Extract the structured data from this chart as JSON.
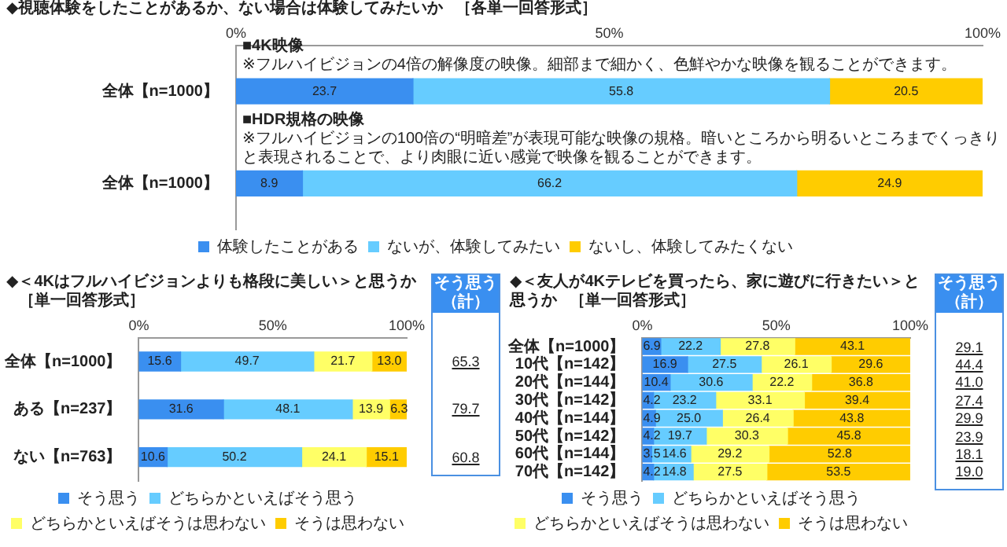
{
  "chart_data": [
    {
      "type": "bar",
      "orientation": "horizontal",
      "stacked": true,
      "title": "◆視聴体験をしたことがあるか、ない場合は体験してみたいか",
      "subtitle": "［各単一回答形式］",
      "categories": [
        "全体【n=1000】",
        "全体【n=1000】"
      ],
      "series": [
        {
          "name": "体験したことがある",
          "color": "#3a8ff0",
          "values": [
            23.7,
            8.9
          ],
          "value_labels": [
            "23.7",
            "8.9"
          ]
        },
        {
          "name": "ないが、体験してみたい",
          "color": "#66ccff",
          "values": [
            55.8,
            66.2
          ],
          "value_labels": [
            "55.8",
            "66.2"
          ]
        },
        {
          "name": "ないし、体験してみたくない",
          "color": "#ffcc00",
          "values": [
            20.5,
            24.9
          ],
          "value_labels": [
            "20.5",
            "24.9"
          ]
        }
      ],
      "xlim": [
        0,
        100
      ],
      "xticks": [
        {
          "value": 0,
          "label": "0%"
        },
        {
          "value": 50,
          "label": "50%"
        },
        {
          "value": 100,
          "label": "100%"
        }
      ],
      "legend": "bottom",
      "annotations": [
        "■4K映像",
        "※フルハイビジョンの4倍の解像度の映像。細部まで細かく、色鮮やかな映像を観ることができます。",
        "■HDR規格の映像",
        "※フルハイビジョンの100倍の“明暗差”が表現可能な映像の規格。暗いところから明るいところまでくっきりと表現されることで、より肉眼に近い感覚で映像を観ることができます。"
      ]
    },
    {
      "type": "bar",
      "orientation": "horizontal",
      "stacked": true,
      "title": "◆＜4Kはフルハイビジョンよりも格段に美しい＞と思うか",
      "subtitle": "［単一回答形式］",
      "categories": [
        "全体【n=1000】",
        "ある【n=237】",
        "ない【n=763】"
      ],
      "series": [
        {
          "name": "そう思う",
          "color": "#3a8ff0",
          "values": [
            15.6,
            31.6,
            10.6
          ],
          "value_labels": [
            "15.6",
            "31.6",
            "10.6"
          ]
        },
        {
          "name": "どちらかといえばそう思う",
          "color": "#66ccff",
          "values": [
            49.7,
            48.1,
            50.2
          ],
          "value_labels": [
            "49.7",
            "48.1",
            "50.2"
          ]
        },
        {
          "name": "どちらかといえばそうは思わない",
          "color": "#ffff66",
          "values": [
            21.7,
            13.9,
            24.1
          ],
          "value_labels": [
            "21.7",
            "13.9",
            "24.1"
          ]
        },
        {
          "name": "そうは思わない",
          "color": "#ffcc00",
          "values": [
            13.0,
            6.3,
            15.1
          ],
          "value_labels": [
            "13.0",
            "6.3",
            "15.1"
          ]
        }
      ],
      "xlim": [
        0,
        100
      ],
      "xticks": [
        {
          "value": 0,
          "label": "0%"
        },
        {
          "value": 50,
          "label": "50%"
        },
        {
          "value": 100,
          "label": "100%"
        }
      ],
      "legend": "bottom",
      "annotations": [
        "そう思う（計）",
        "65.3",
        "79.7",
        "60.8"
      ]
    },
    {
      "type": "bar",
      "orientation": "horizontal",
      "stacked": true,
      "title": "◆＜友人が4Kテレビを買ったら、家に遊びに行きたい＞と思うか",
      "subtitle": "［単一回答形式］",
      "categories": [
        "全体【n=1000】",
        "10代【n=142】",
        "20代【n=144】",
        "30代【n=142】",
        "40代【n=144】",
        "50代【n=142】",
        "60代【n=144】",
        "70代【n=142】"
      ],
      "series": [
        {
          "name": "そう思う",
          "color": "#3a8ff0",
          "values": [
            6.9,
            16.9,
            10.4,
            4.2,
            4.9,
            4.2,
            3.5,
            4.2
          ],
          "value_labels": [
            "6.9",
            "16.9",
            "10.4",
            "4.2",
            "4.9",
            "4.2",
            "3.5",
            "4.2"
          ]
        },
        {
          "name": "どちらかといえばそう思う",
          "color": "#66ccff",
          "values": [
            22.2,
            27.5,
            30.6,
            23.2,
            25.0,
            19.7,
            14.6,
            14.8
          ],
          "value_labels": [
            "22.2",
            "27.5",
            "30.6",
            "23.2",
            "25.0",
            "19.7",
            "14.6",
            "14.8"
          ]
        },
        {
          "name": "どちらかといえばそうは思わない",
          "color": "#ffff66",
          "values": [
            27.8,
            26.1,
            22.2,
            33.1,
            26.4,
            30.3,
            29.2,
            27.5
          ],
          "value_labels": [
            "27.8",
            "26.1",
            "22.2",
            "33.1",
            "26.4",
            "30.3",
            "29.2",
            "27.5"
          ]
        },
        {
          "name": "そうは思わない",
          "color": "#ffcc00",
          "values": [
            43.1,
            29.6,
            36.8,
            39.4,
            43.8,
            45.8,
            52.8,
            53.5
          ],
          "value_labels": [
            "43.1",
            "29.6",
            "36.8",
            "39.4",
            "43.8",
            "45.8",
            "52.8",
            "53.5"
          ]
        }
      ],
      "xlim": [
        0,
        100
      ],
      "xticks": [
        {
          "value": 0,
          "label": "0%"
        },
        {
          "value": 50,
          "label": "50%"
        },
        {
          "value": 100,
          "label": "100%"
        }
      ],
      "legend": "bottom",
      "annotations": [
        "そう思う（計）",
        "29.1",
        "44.4",
        "41.0",
        "27.4",
        "29.9",
        "23.9",
        "18.1",
        "19.0"
      ]
    }
  ]
}
